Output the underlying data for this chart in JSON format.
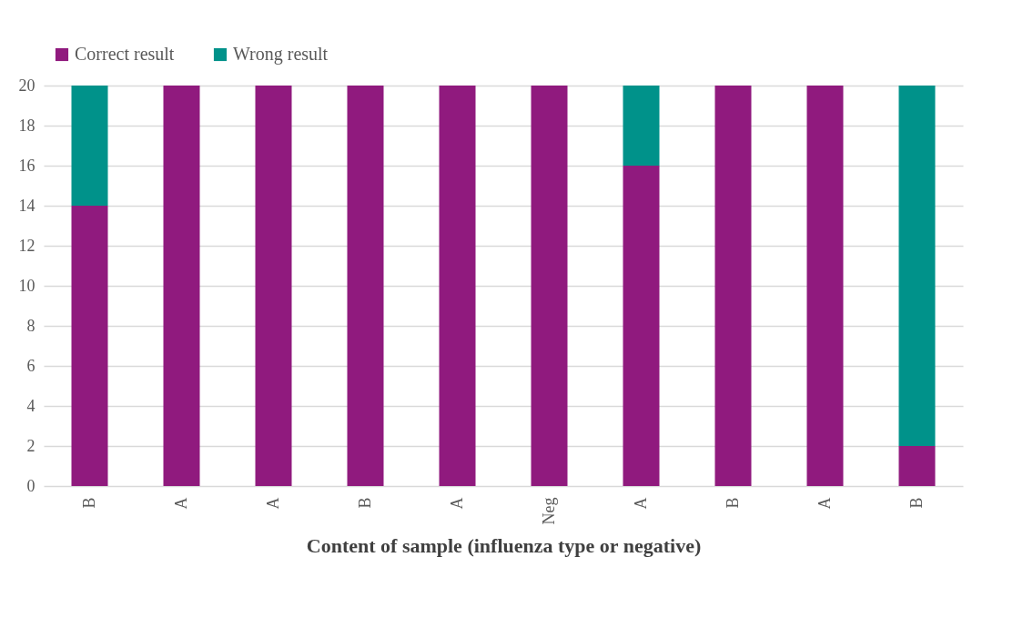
{
  "chart_data": {
    "type": "bar",
    "stacked": true,
    "xlabel": "Content of sample (influenza type or negative)",
    "categories": [
      "B",
      "A",
      "A",
      "B",
      "A",
      "Neg",
      "A",
      "B",
      "A",
      "B"
    ],
    "series": [
      {
        "name": "Correct result",
        "color": "#901a7e",
        "values": [
          14,
          20,
          20,
          20,
          20,
          20,
          16,
          20,
          20,
          2
        ]
      },
      {
        "name": "Wrong result",
        "color": "#00928a",
        "values": [
          6,
          0,
          0,
          0,
          0,
          0,
          4,
          0,
          0,
          18
        ]
      }
    ],
    "ylim": [
      0,
      20
    ],
    "yticks": [
      0,
      2,
      4,
      6,
      8,
      10,
      12,
      14,
      16,
      18,
      20
    ],
    "grid": "y",
    "legend": "top"
  }
}
